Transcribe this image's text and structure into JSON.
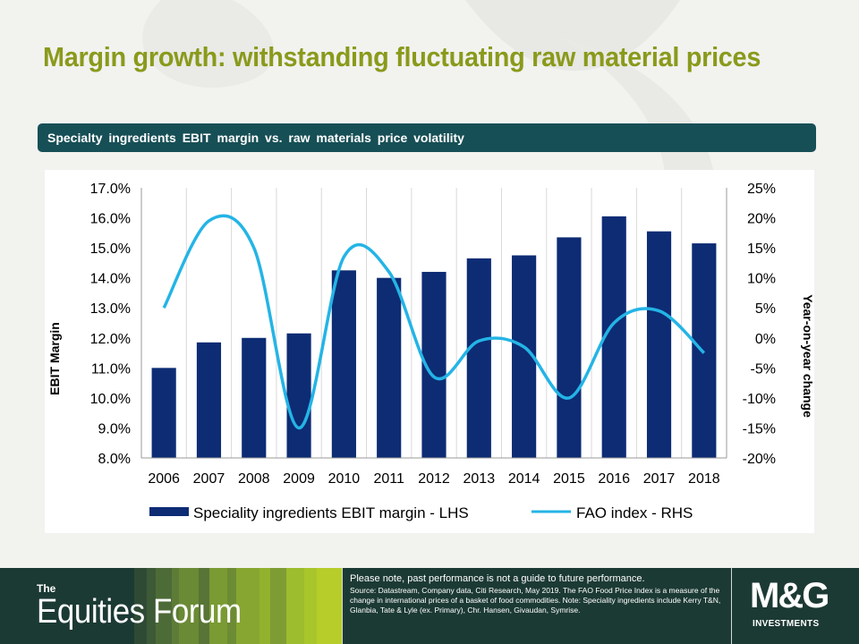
{
  "slide": {
    "title": "Margin growth: withstanding fluctuating raw material prices",
    "banner": "Specialty ingredients EBIT margin vs. raw materials price volatility"
  },
  "chart_data": {
    "type": "bar",
    "categories": [
      "2006",
      "2007",
      "2008",
      "2009",
      "2010",
      "2011",
      "2012",
      "2013",
      "2014",
      "2015",
      "2016",
      "2017",
      "2018"
    ],
    "series": [
      {
        "name": "Speciality ingredients EBIT margin - LHS",
        "type": "bar",
        "axis": "left",
        "color": "#0d2c74",
        "values": [
          11.0,
          11.85,
          12.0,
          12.15,
          14.25,
          14.0,
          14.2,
          14.65,
          14.75,
          15.35,
          16.05,
          15.55,
          15.15
        ]
      },
      {
        "name": "FAO index - RHS",
        "type": "line",
        "axis": "right",
        "color": "#24b4e6",
        "values": [
          5.0,
          19.5,
          15.0,
          -15.0,
          13.5,
          11.0,
          -6.5,
          -0.5,
          -1.5,
          -10.0,
          2.5,
          4.5,
          -2.5
        ]
      }
    ],
    "ylabel": "EBIT Margin",
    "y2label": "Year-on-year change",
    "ylim": [
      8.0,
      17.0
    ],
    "y2lim": [
      -20,
      25
    ],
    "yticks": [
      "8.0%",
      "9.0%",
      "10.0%",
      "11.0%",
      "12.0%",
      "13.0%",
      "14.0%",
      "15.0%",
      "16.0%",
      "17.0%"
    ],
    "y2ticks": [
      "-20%",
      "-15%",
      "-10%",
      "-5%",
      "0%",
      "5%",
      "10%",
      "15%",
      "20%",
      "25%"
    ],
    "grid": "vertical",
    "legend": "bottom"
  },
  "footer": {
    "brand_prefix": "The",
    "brand_name": "Equities Forum",
    "disclaimer": "Please note, past performance  is not a guide to future performance.",
    "source_note": "Source: Datastream, Company data, Citi Research, May 2019. The FAO Food Price Index is a measure of the change in international prices of a basket of food commodities. Note: Speciality ingredients include Kerry T&N, Glanbia, Tate & Lyle (ex. Primary), Chr. Hansen, Givaudan, Symrise.",
    "logo_main": "M&G",
    "logo_sub": "INVESTMENTS"
  }
}
